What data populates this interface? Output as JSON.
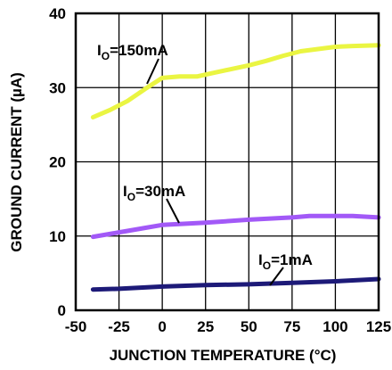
{
  "chart_data": {
    "type": "line",
    "xlabel": "JUNCTION TEMPERATURE (°C)",
    "ylabel": "GROUND CURRENT (µA)",
    "xlim": [
      -50,
      125
    ],
    "ylim": [
      0,
      40
    ],
    "xticks": [
      -50,
      -25,
      0,
      25,
      50,
      75,
      100,
      125
    ],
    "yticks": [
      0,
      10,
      20,
      30,
      40
    ],
    "grid": true,
    "series": [
      {
        "name": "IO=150mA",
        "label_main": "I",
        "label_sub": "O",
        "label_rest": "=150mA",
        "color": "#eaf542",
        "x": [
          -40,
          -30,
          -20,
          -10,
          0,
          10,
          20,
          30,
          40,
          50,
          60,
          70,
          80,
          90,
          100,
          110,
          125
        ],
        "y": [
          26.0,
          27.0,
          28.2,
          29.8,
          31.3,
          31.5,
          31.5,
          32.0,
          32.5,
          33.0,
          33.6,
          34.3,
          34.9,
          35.2,
          35.5,
          35.6,
          35.7
        ]
      },
      {
        "name": "IO=30mA",
        "label_main": "I",
        "label_sub": "O",
        "label_rest": "=30mA",
        "color": "#a259f7",
        "x": [
          -40,
          -25,
          -10,
          0,
          25,
          50,
          75,
          85,
          100,
          110,
          125
        ],
        "y": [
          9.9,
          10.5,
          11.1,
          11.5,
          11.8,
          12.2,
          12.5,
          12.7,
          12.7,
          12.7,
          12.5
        ]
      },
      {
        "name": "IO=1mA",
        "label_main": "I",
        "label_sub": "O",
        "label_rest": "=1mA",
        "color": "#1d1a78",
        "x": [
          -40,
          -25,
          0,
          25,
          50,
          75,
          100,
          125
        ],
        "y": [
          2.8,
          2.9,
          3.2,
          3.4,
          3.5,
          3.7,
          3.9,
          4.2
        ]
      }
    ]
  }
}
